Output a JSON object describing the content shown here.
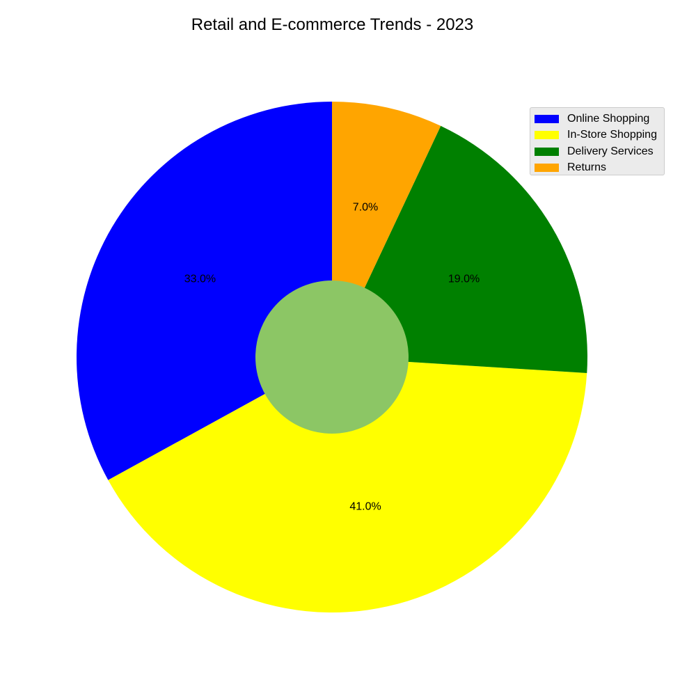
{
  "chart_data": {
    "type": "pie",
    "title": "Retail and E-commerce Trends - 2023",
    "categories": [
      "Online Shopping",
      "In-Store Shopping",
      "Delivery Services",
      "Returns"
    ],
    "values": [
      33.0,
      41.0,
      19.0,
      7.0
    ],
    "value_labels": [
      "33.0%",
      "41.0%",
      "19.0%",
      "7.0%"
    ],
    "colors": [
      "#0000ff",
      "#ffff00",
      "#008000",
      "#ffa500"
    ],
    "center_color": "#8cc665",
    "start_angle_deg": 90,
    "direction": "counterclockwise",
    "legend": "top-right"
  }
}
